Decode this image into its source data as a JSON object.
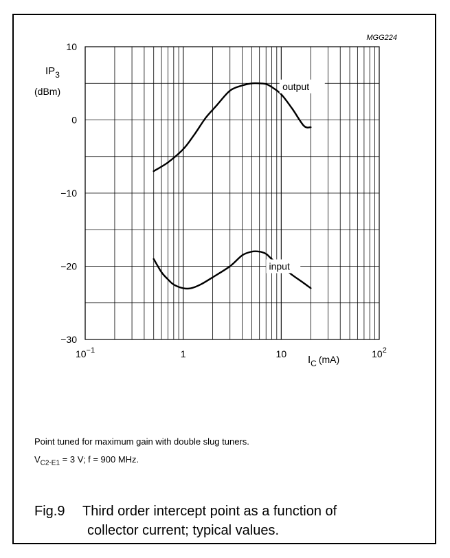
{
  "chart_data": {
    "type": "line",
    "code": "MGG224",
    "ylabel_main": "IP",
    "ylabel_sub": "3",
    "yunit": "(dBm)",
    "xlabel_main": "I",
    "xlabel_sub": "C",
    "xunit": "(mA)",
    "x_scale": "log",
    "xlim": [
      0.1,
      100
    ],
    "ylim": [
      -30,
      10
    ],
    "grid": true,
    "y_ticks": [
      {
        "value": 10,
        "label": "10"
      },
      {
        "value": 0,
        "label": "0"
      },
      {
        "value": -10,
        "label": "−10"
      },
      {
        "value": -20,
        "label": "−20"
      },
      {
        "value": -30,
        "label": "−30"
      }
    ],
    "x_ticks": [
      {
        "value": 0.1,
        "base": "10",
        "exp": "−1"
      },
      {
        "value": 1,
        "base": "1",
        "exp": ""
      },
      {
        "value": 10,
        "base": "10",
        "exp": ""
      },
      {
        "value": 100,
        "base": "10",
        "exp": "2"
      }
    ],
    "series": [
      {
        "name": "output",
        "x": [
          0.5,
          0.7,
          1.0,
          1.3,
          1.7,
          2.2,
          3.0,
          4.0,
          5.0,
          6.0,
          7.0,
          8.0,
          10.0,
          13.0,
          17.0,
          20.0
        ],
        "y": [
          -7.0,
          -5.8,
          -4.0,
          -2.0,
          0.3,
          2.0,
          4.0,
          4.7,
          5.0,
          5.0,
          4.9,
          4.5,
          3.5,
          1.5,
          -0.8,
          -1.0
        ]
      },
      {
        "name": "input",
        "x": [
          0.5,
          0.6,
          0.7,
          0.8,
          1.0,
          1.2,
          1.5,
          2.0,
          3.0,
          4.0,
          5.0,
          6.0,
          7.0,
          8.0,
          10.0,
          13.0,
          17.0,
          20.0
        ],
        "y": [
          -19.0,
          -20.8,
          -21.8,
          -22.5,
          -23.0,
          -23.0,
          -22.5,
          -21.5,
          -20.0,
          -18.5,
          -18.0,
          -18.0,
          -18.3,
          -19.0,
          -20.0,
          -21.2,
          -22.3,
          -23.0
        ]
      }
    ]
  },
  "notes": {
    "line1": "Point tuned for maximum gain with double slug tuners.",
    "line2_v": "V",
    "line2_sub": "C2-E1",
    "line2_rest": " = 3 V; f = 900 MHz."
  },
  "caption": {
    "fig": "Fig.9",
    "line1": "Third order intercept point as a function of",
    "line2": "collector current; typical values."
  }
}
